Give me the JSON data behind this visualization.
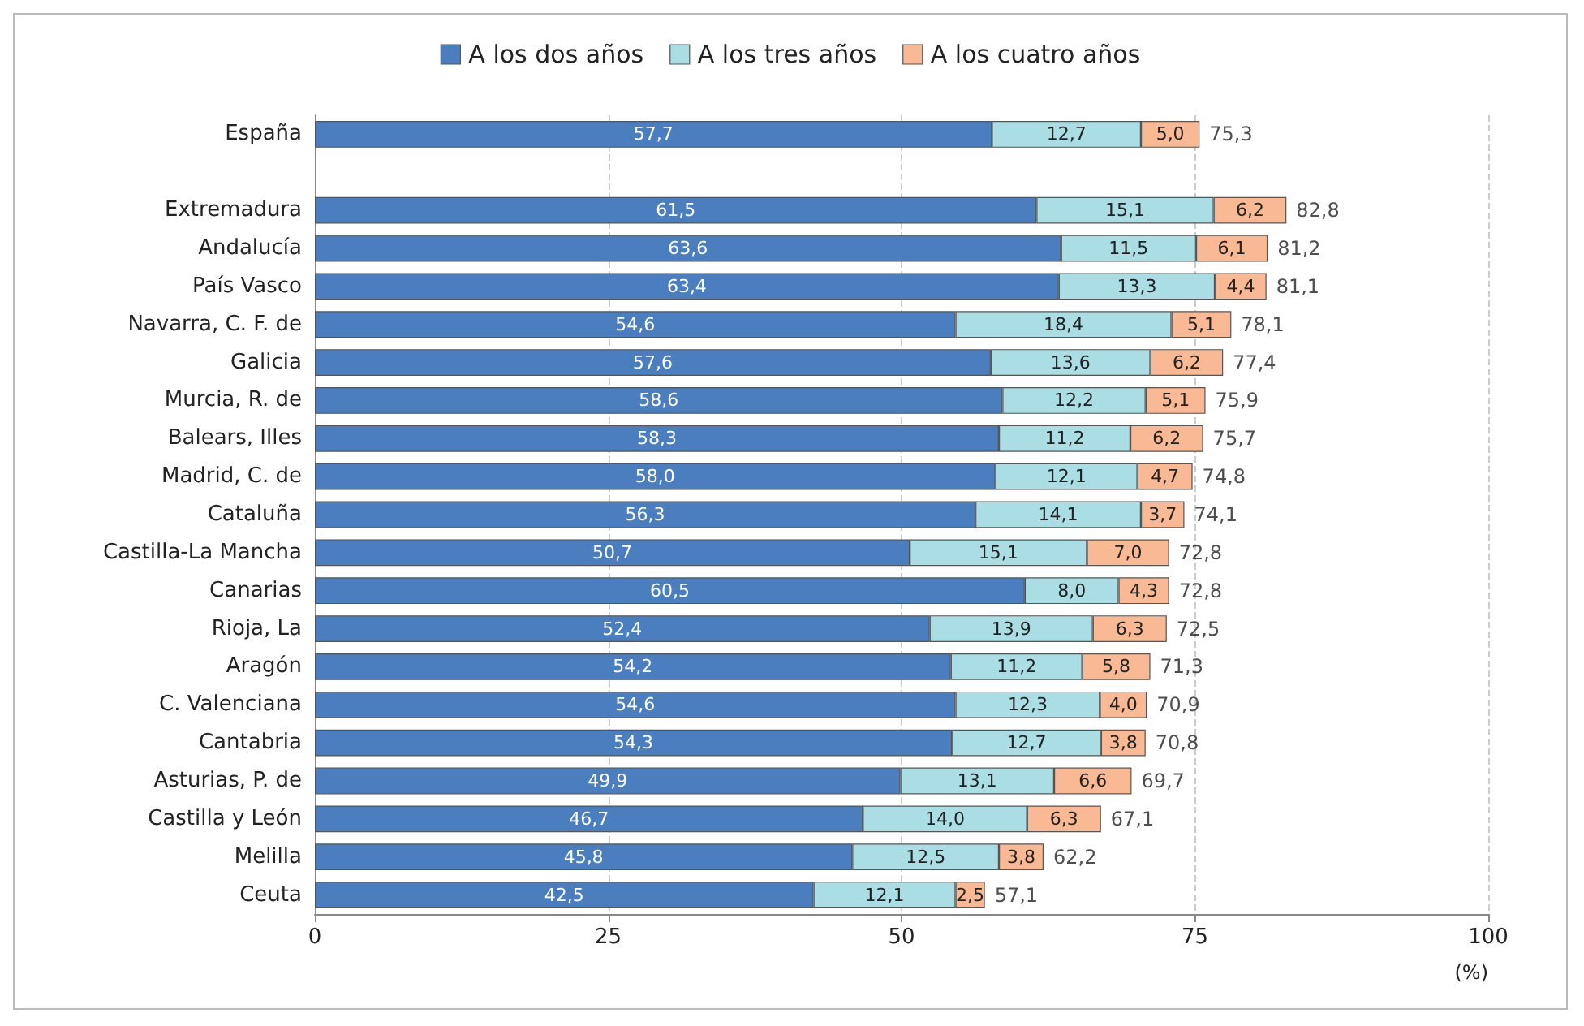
{
  "chart_data": {
    "type": "bar",
    "orientation": "horizontal",
    "stacked": true,
    "xlabel": "(%)",
    "categories": [
      "España",
      null,
      "Extremadura",
      "Andalucía",
      "País Vasco",
      "Navarra, C. F. de",
      "Galicia",
      "Murcia, R. de",
      "Balears, Illes",
      "Madrid, C. de",
      "Cataluña",
      "Castilla-La Mancha",
      "Canarias",
      "Rioja, La",
      "Aragón",
      "C. Valenciana",
      "Cantabria",
      "Asturias, P. de",
      "Castilla y León",
      "Melilla",
      "Ceuta"
    ],
    "series": [
      {
        "name": "A los dos años",
        "color": "#4a7ebf",
        "values": [
          57.7,
          null,
          61.5,
          63.6,
          63.4,
          54.6,
          57.6,
          58.6,
          58.3,
          58.0,
          56.3,
          50.7,
          60.5,
          52.4,
          54.2,
          54.6,
          54.3,
          49.9,
          46.7,
          45.8,
          42.5
        ],
        "value_labels": [
          "57,7",
          null,
          "61,5",
          "63,6",
          "63,4",
          "54,6",
          "57,6",
          "58,6",
          "58,3",
          "58,0",
          "56,3",
          "50,7",
          "60,5",
          "52,4",
          "54,2",
          "54,6",
          "54,3",
          "49,9",
          "46,7",
          "45,8",
          "42,5"
        ]
      },
      {
        "name": "A los tres años",
        "color": "#aadde4",
        "values": [
          12.7,
          null,
          15.1,
          11.5,
          13.3,
          18.4,
          13.6,
          12.2,
          11.2,
          12.1,
          14.1,
          15.1,
          8.0,
          13.9,
          11.2,
          12.3,
          12.7,
          13.1,
          14.0,
          12.5,
          12.1
        ],
        "value_labels": [
          "12,7",
          null,
          "15,1",
          "11,5",
          "13,3",
          "18,4",
          "13,6",
          "12,2",
          "11,2",
          "12,1",
          "14,1",
          "15,1",
          "8,0",
          "13,9",
          "11,2",
          "12,3",
          "12,7",
          "13,1",
          "14,0",
          "12,5",
          "12,1"
        ]
      },
      {
        "name": "A los cuatro años",
        "color": "#f8b994",
        "values": [
          5.0,
          null,
          6.2,
          6.1,
          4.4,
          5.1,
          6.2,
          5.1,
          6.2,
          4.7,
          3.7,
          7.0,
          4.3,
          6.3,
          5.8,
          4.0,
          3.8,
          6.6,
          6.3,
          3.8,
          2.5
        ],
        "value_labels": [
          "5,0",
          null,
          "6,2",
          "6,1",
          "4,4",
          "5,1",
          "6,2",
          "5,1",
          "6,2",
          "4,7",
          "3,7",
          "7,0",
          "4,3",
          "6,3",
          "5,8",
          "4,0",
          "3,8",
          "6,6",
          "6,3",
          "3,8",
          "2,5"
        ]
      }
    ],
    "totals": [
      "75,3",
      null,
      "82,8",
      "81,2",
      "81,1",
      "78,1",
      "77,4",
      "75,9",
      "75,7",
      "74,8",
      "74,1",
      "72,8",
      "72,8",
      "72,5",
      "71,3",
      "70,9",
      "70,8",
      "69,7",
      "67,1",
      "62,2",
      "57,1"
    ],
    "xlim": [
      0,
      100
    ],
    "xticks": [
      0,
      25,
      50,
      75,
      100
    ],
    "grid": "x",
    "legend": "top"
  }
}
